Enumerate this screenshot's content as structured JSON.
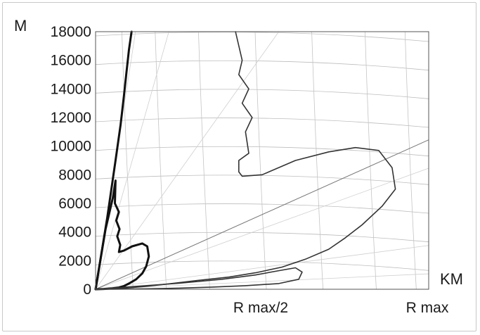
{
  "chart_data": {
    "type": "line",
    "ylabel": "M",
    "xlabel": "KM",
    "ylim": [
      0,
      18000
    ],
    "xlim": [
      0,
      1
    ],
    "grid": true,
    "y_ticks": [
      {
        "value": 0,
        "label": "0"
      },
      {
        "value": 2000,
        "label": "2000"
      },
      {
        "value": 4000,
        "label": "4000"
      },
      {
        "value": 6000,
        "label": "6000"
      },
      {
        "value": 8000,
        "label": "8000"
      },
      {
        "value": 10000,
        "label": "10000"
      },
      {
        "value": 12000,
        "label": "12000"
      },
      {
        "value": 14000,
        "label": "14000"
      },
      {
        "value": 16000,
        "label": "16000"
      },
      {
        "value": 18000,
        "label": "18000"
      }
    ],
    "x_ticks": [
      {
        "value": 0.5,
        "label": "R max/2"
      },
      {
        "value": 1.0,
        "label": "R max"
      }
    ],
    "series": [
      {
        "style": "heavy",
        "x": [
          0.0,
          0.035,
          0.06,
          0.075,
          0.085,
          0.092,
          0.1,
          0.108
        ],
        "y": [
          0,
          5000,
          9000,
          11500,
          13500,
          15000,
          16700,
          18000
        ]
      },
      {
        "style": "heavy",
        "x": [
          0.0,
          0.03,
          0.052,
          0.06,
          0.058,
          0.07,
          0.062,
          0.072,
          0.065,
          0.074,
          0.07,
          0.085,
          0.11,
          0.14,
          0.155,
          0.16,
          0.152,
          0.14,
          0.122,
          0.1,
          0.085,
          0.07,
          0.05,
          0.025,
          0.0
        ],
        "y": [
          0,
          4200,
          6400,
          7600,
          6000,
          5400,
          4800,
          4200,
          3700,
          3100,
          2600,
          2700,
          3000,
          3200,
          3000,
          2300,
          1600,
          1100,
          700,
          400,
          220,
          120,
          60,
          20,
          0
        ]
      },
      {
        "style": "medium",
        "x": [
          0.42,
          0.44,
          0.43,
          0.46,
          0.44,
          0.47,
          0.45,
          0.46,
          0.43,
          0.43,
          0.44,
          0.5,
          0.6,
          0.7,
          0.78,
          0.85,
          0.89,
          0.9,
          0.86,
          0.8,
          0.75,
          0.7,
          0.63,
          0.56,
          0.48,
          0.4,
          0.3,
          0.22,
          0.15,
          0.1,
          0.06,
          0.03,
          0.0
        ],
        "y": [
          18000,
          16000,
          15000,
          14000,
          13000,
          12000,
          11000,
          9500,
          9000,
          8200,
          7900,
          8000,
          9000,
          9600,
          9900,
          9700,
          8500,
          7000,
          5800,
          4500,
          3600,
          2800,
          2100,
          1550,
          1150,
          850,
          600,
          380,
          200,
          100,
          40,
          10,
          0
        ]
      },
      {
        "style": "medium",
        "x": [
          0.0,
          0.12,
          0.25,
          0.38,
          0.48,
          0.55,
          0.6,
          0.62,
          0.61,
          0.55,
          0.45,
          0.35,
          0.25,
          0.15,
          0.05,
          0.0
        ],
        "y": [
          0,
          200,
          420,
          700,
          1000,
          1300,
          1500,
          1200,
          700,
          400,
          250,
          150,
          80,
          30,
          5,
          0
        ]
      }
    ]
  }
}
